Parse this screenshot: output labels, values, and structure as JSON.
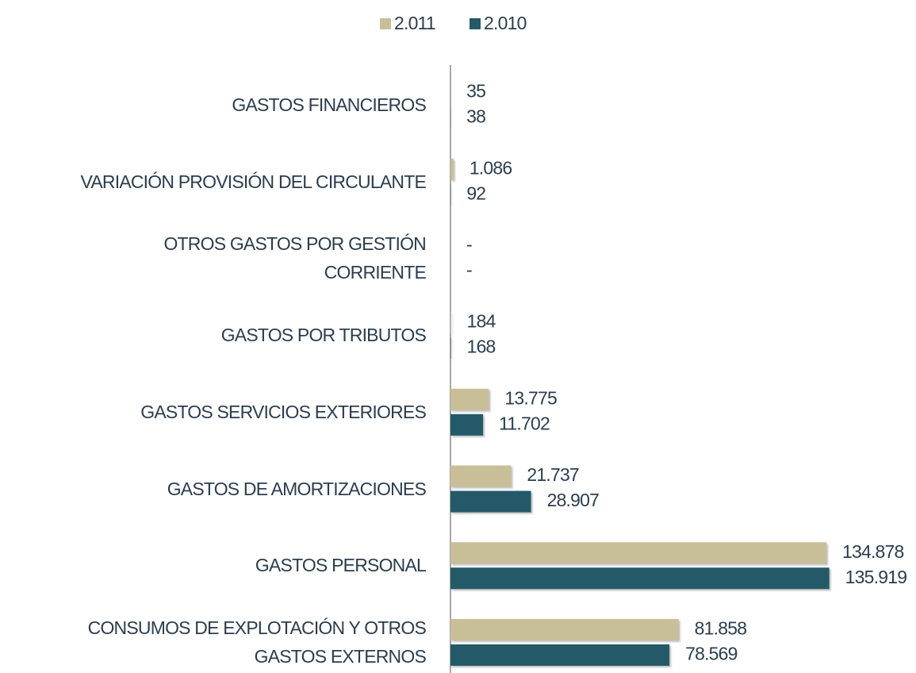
{
  "chart_data": {
    "type": "barh",
    "categories": [
      "GASTOS FINANCIEROS",
      "VARIACIÓN PROVISIÓN DEL CIRCULANTE",
      "OTROS GASTOS POR GESTIÓN\nCORRIENTE",
      "GASTOS POR TRIBUTOS",
      "GASTOS SERVICIOS EXTERIORES",
      "GASTOS DE AMORTIZACIONES",
      "GASTOS PERSONAL",
      "CONSUMOS DE EXPLOTACIÓN Y OTROS\nGASTOS EXTERNOS"
    ],
    "series": [
      {
        "name": "2.011",
        "color": "#c8bf99",
        "values": [
          35,
          1086,
          0,
          184,
          13775,
          21737,
          134878,
          81858
        ],
        "value_labels": [
          "35",
          "1.086",
          "-",
          "184",
          "13.775",
          "21.737",
          "134.878",
          "81.858"
        ]
      },
      {
        "name": "2.010",
        "color": "#245a68",
        "values": [
          38,
          92,
          0,
          168,
          11702,
          28907,
          135919,
          78569
        ],
        "value_labels": [
          "38",
          "92",
          "-",
          "168",
          "11.702",
          "28.907",
          "135.919",
          "78.569"
        ]
      }
    ],
    "xlim": [
      0,
      140000
    ],
    "legend": "top"
  }
}
